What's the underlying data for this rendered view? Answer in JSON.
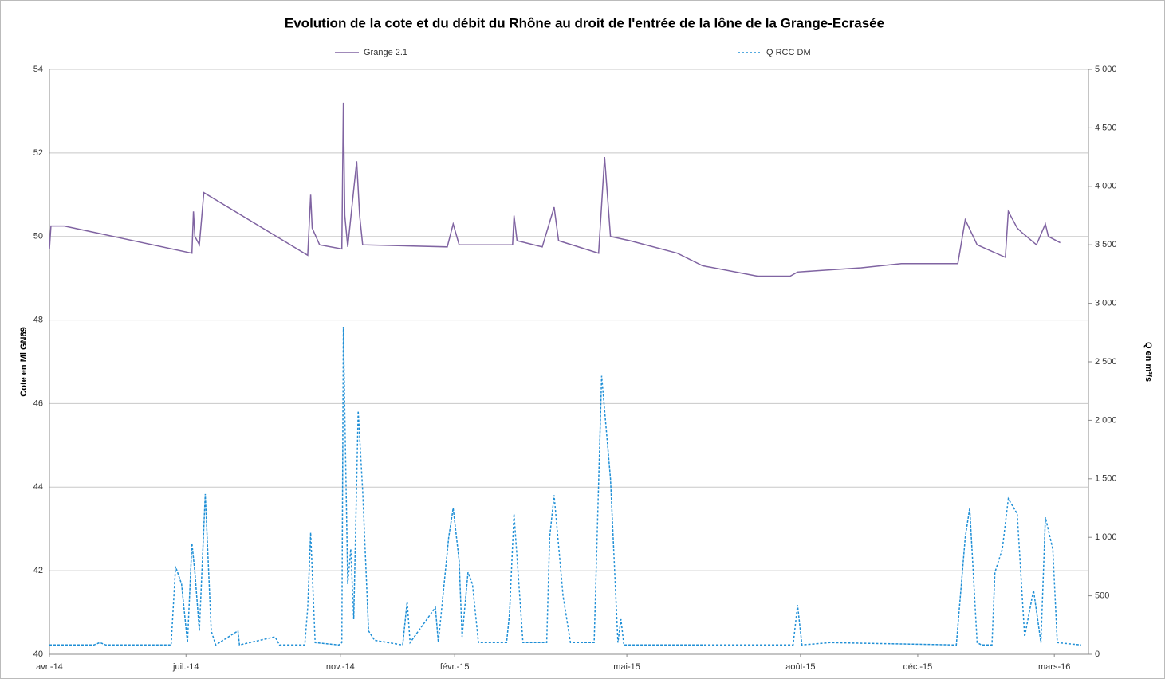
{
  "chart_data": {
    "type": "line",
    "title": "Evolution de la cote et du débit du Rhône au droit de l'entrée de la lône de la Grange-Ecrasée",
    "y_label": "Cote en Ml GN69",
    "y2_label": "Q en m³/s",
    "xlim": [
      0,
      700
    ],
    "xticks": [
      {
        "value": 0,
        "label": "avr.-14"
      },
      {
        "value": 92,
        "label": "juil.-14"
      },
      {
        "value": 196,
        "label": "nov.-14"
      },
      {
        "value": 273,
        "label": "févr.-15"
      },
      {
        "value": 389,
        "label": "mai-15"
      },
      {
        "value": 506,
        "label": "août-15"
      },
      {
        "value": 585,
        "label": "déc.-15"
      },
      {
        "value": 677,
        "label": "mars-16"
      }
    ],
    "ylim": [
      40,
      54
    ],
    "yticks": [
      40,
      42,
      44,
      46,
      48,
      50,
      52,
      54
    ],
    "y2lim": [
      0,
      5000
    ],
    "y2ticks": [
      0,
      500,
      {
        "value": 1000,
        "label": "1 000"
      },
      {
        "value": 1500,
        "label": "1 500"
      },
      {
        "value": 2000,
        "label": "2 000"
      },
      {
        "value": 2500,
        "label": "2 500"
      },
      {
        "value": 3000,
        "label": "3 000"
      },
      {
        "value": 3500,
        "label": "3 500"
      },
      {
        "value": 4000,
        "label": "4 000"
      },
      {
        "value": 4500,
        "label": "4 500"
      },
      {
        "value": 5000,
        "label": "5 000"
      }
    ],
    "grid": true,
    "legend": "top",
    "series": [
      {
        "name": "Grange 2.1",
        "color": "#8064a2",
        "dashed": false,
        "x": [
          0,
          1,
          10,
          96,
          97,
          98,
          101,
          104,
          174,
          176,
          177,
          182,
          197,
          198,
          199,
          201,
          207,
          209,
          211,
          268,
          272,
          276,
          312,
          313,
          315,
          332,
          340,
          343,
          370,
          374,
          378,
          391,
          423,
          440,
          477,
          499,
          504,
          547,
          574,
          612,
          617,
          625,
          644,
          646,
          652,
          655,
          665,
          671,
          673,
          681
        ],
        "values": [
          49.7,
          50.25,
          50.25,
          49.6,
          50.6,
          50.0,
          49.8,
          51.05,
          49.55,
          51.0,
          50.2,
          49.8,
          49.7,
          53.2,
          50.5,
          49.75,
          51.8,
          50.5,
          49.8,
          49.75,
          50.3,
          49.8,
          49.8,
          50.5,
          49.9,
          49.75,
          50.7,
          49.9,
          49.6,
          51.9,
          50.0,
          49.9,
          49.6,
          49.3,
          49.05,
          49.05,
          49.15,
          49.25,
          49.35,
          49.35,
          50.4,
          49.8,
          49.5,
          50.6,
          50.2,
          50.1,
          49.8,
          50.3,
          50.0,
          49.85
        ]
      },
      {
        "name": "Q RCC DM",
        "color": "#1f8fd6",
        "dashed": true,
        "axis": "y2",
        "x": [
          0,
          30,
          34,
          38,
          82,
          85,
          89,
          93,
          96,
          98,
          101,
          105,
          109,
          112,
          127,
          128,
          152,
          155,
          172,
          174,
          176,
          179,
          195,
          197,
          198,
          201,
          203,
          205,
          208,
          211,
          215,
          219,
          238,
          241,
          243,
          260,
          262,
          269,
          272,
          276,
          278,
          282,
          285,
          289,
          308,
          310,
          313,
          319,
          335,
          337,
          340,
          346,
          351,
          367,
          372,
          378,
          383,
          385,
          387,
          501,
          504,
          507,
          526,
          611,
          617,
          620,
          625,
          628,
          635,
          637,
          642,
          646,
          652,
          657,
          663,
          668,
          671,
          676,
          679,
          695
        ],
        "values": [
          80,
          80,
          100,
          80,
          80,
          750,
          600,
          100,
          950,
          700,
          200,
          1370,
          200,
          80,
          200,
          80,
          150,
          80,
          80,
          400,
          1040,
          100,
          80,
          100,
          2800,
          600,
          900,
          300,
          2080,
          1400,
          200,
          120,
          80,
          450,
          100,
          400,
          100,
          1000,
          1250,
          800,
          150,
          700,
          600,
          100,
          100,
          350,
          1200,
          100,
          100,
          1000,
          1360,
          500,
          100,
          100,
          2380,
          1500,
          100,
          300,
          80,
          80,
          420,
          80,
          100,
          80,
          1000,
          1250,
          100,
          80,
          80,
          700,
          900,
          1330,
          1200,
          150,
          550,
          100,
          1170,
          900,
          100,
          80
        ]
      }
    ]
  }
}
